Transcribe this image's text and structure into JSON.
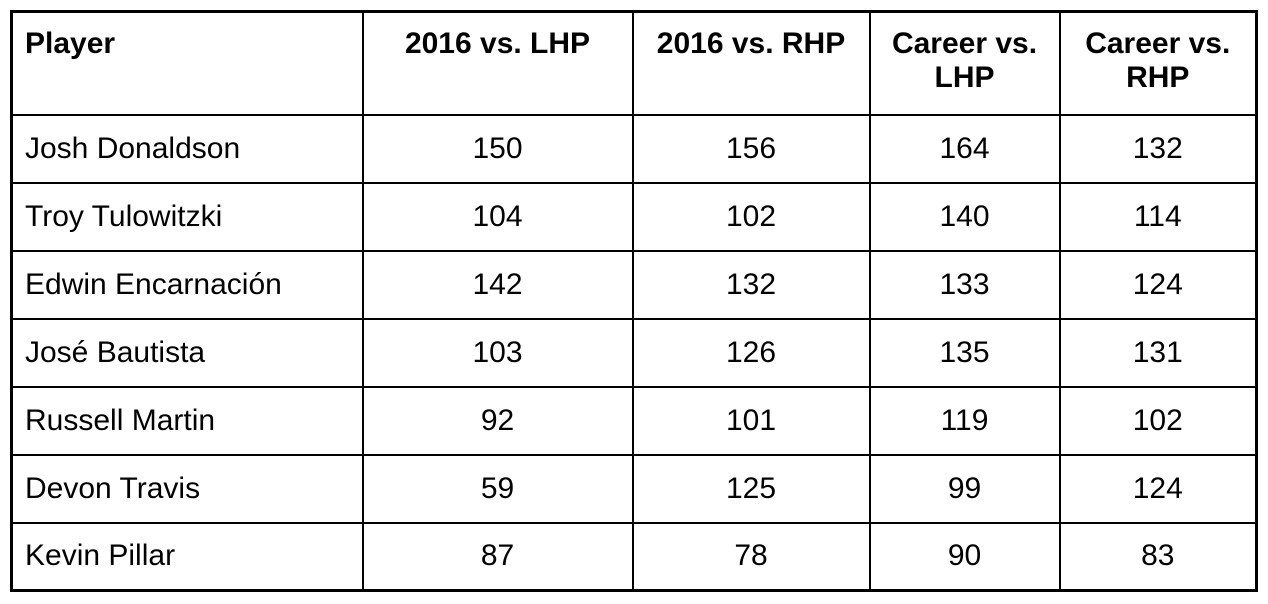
{
  "colors": {
    "background": "#ffffff",
    "border": "#000000",
    "text": "#000000"
  },
  "chart_data": {
    "type": "table",
    "columns": [
      "Player",
      "2016 vs. LHP",
      "2016 vs. RHP",
      "Career vs. LHP",
      "Career vs. RHP"
    ],
    "rows": [
      {
        "player": "Josh Donaldson",
        "values": [
          150,
          156,
          164,
          132
        ]
      },
      {
        "player": "Troy Tulowitzki",
        "values": [
          104,
          102,
          140,
          114
        ]
      },
      {
        "player": "Edwin Encarnación",
        "values": [
          142,
          132,
          133,
          124
        ]
      },
      {
        "player": "José Bautista",
        "values": [
          103,
          126,
          135,
          131
        ]
      },
      {
        "player": "Russell Martin",
        "values": [
          92,
          101,
          119,
          102
        ]
      },
      {
        "player": "Devon Travis",
        "values": [
          59,
          125,
          99,
          124
        ]
      },
      {
        "player": "Kevin Pillar",
        "values": [
          87,
          78,
          90,
          83
        ]
      }
    ]
  }
}
